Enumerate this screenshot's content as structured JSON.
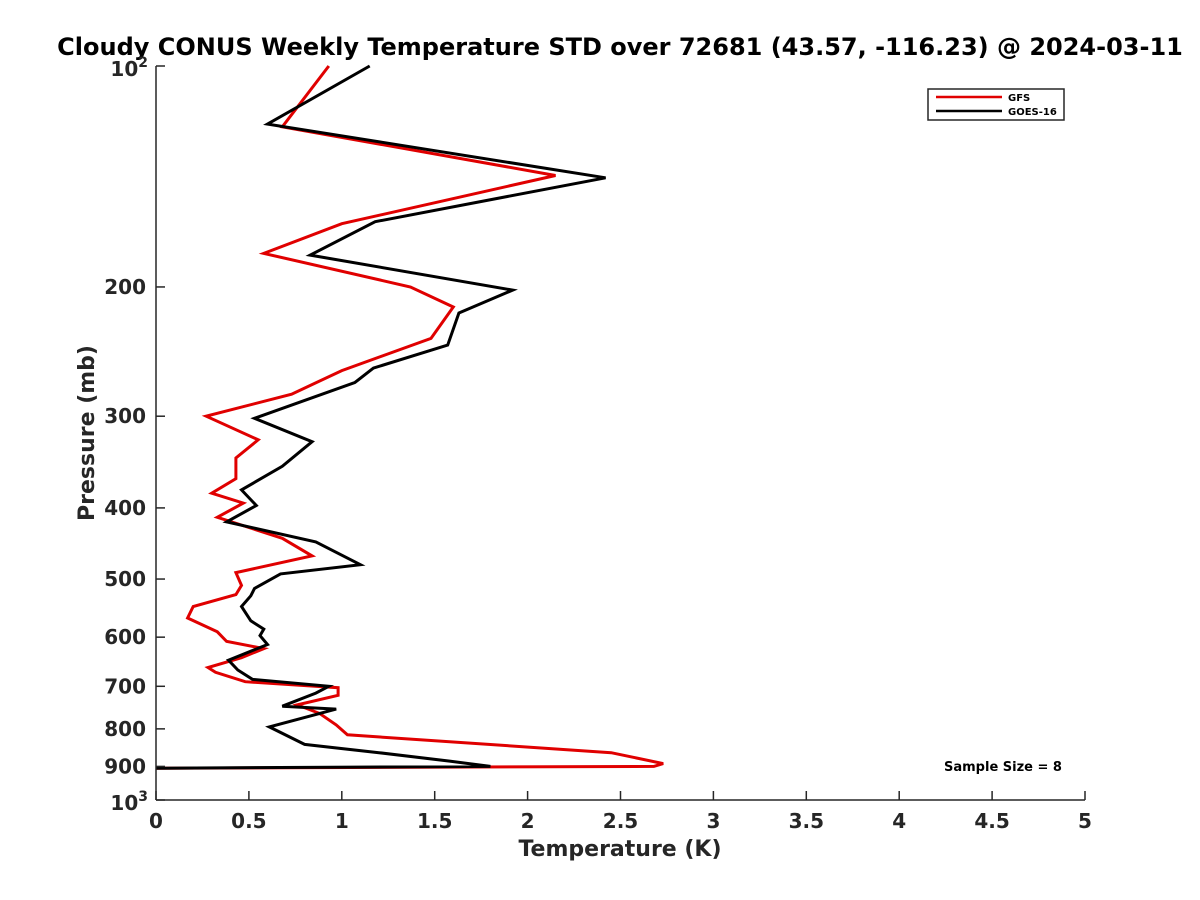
{
  "chart_data": {
    "type": "line",
    "title": "Cloudy CONUS Weekly Temperature STD over 72681 (43.57, -116.23) @ 2024-03-11",
    "xlabel": "Temperature (K)",
    "ylabel": "Pressure (mb)",
    "xlim": [
      0,
      5
    ],
    "ylim": [
      100,
      1000
    ],
    "y_scale": "log",
    "y_reversed": true,
    "grid": false,
    "legend_position": "top-right",
    "x_ticks": [
      "0",
      "0.5",
      "1",
      "1.5",
      "2",
      "2.5",
      "3",
      "3.5",
      "4",
      "4.5",
      "5"
    ],
    "y_ticks": [
      {
        "value": 200,
        "label": "200"
      },
      {
        "value": 300,
        "label": "300"
      },
      {
        "value": 400,
        "label": "400"
      },
      {
        "value": 500,
        "label": "500"
      },
      {
        "value": 600,
        "label": "600"
      },
      {
        "value": 700,
        "label": "700"
      },
      {
        "value": 800,
        "label": "800"
      },
      {
        "value": 900,
        "label": "900"
      }
    ],
    "y_edge_labels": {
      "top": {
        "base": "10",
        "exp": "2"
      },
      "bottom": {
        "base": "10",
        "exp": "3"
      }
    },
    "annotation": "Sample Size = 8",
    "series": [
      {
        "name": "GFS",
        "color": "#e00000",
        "points": [
          [
            0.93,
            100
          ],
          [
            0.68,
            121
          ],
          [
            2.15,
            141
          ],
          [
            1.0,
            164
          ],
          [
            0.58,
            180
          ],
          [
            1.37,
            200
          ],
          [
            1.6,
            213
          ],
          [
            1.48,
            235
          ],
          [
            1.0,
            260
          ],
          [
            0.73,
            280
          ],
          [
            0.27,
            300
          ],
          [
            0.55,
            323
          ],
          [
            0.43,
            342
          ],
          [
            0.43,
            365
          ],
          [
            0.3,
            382
          ],
          [
            0.47,
            394
          ],
          [
            0.33,
            412
          ],
          [
            0.68,
            440
          ],
          [
            0.84,
            465
          ],
          [
            0.43,
            490
          ],
          [
            0.46,
            510
          ],
          [
            0.43,
            525
          ],
          [
            0.2,
            545
          ],
          [
            0.17,
            565
          ],
          [
            0.33,
            590
          ],
          [
            0.38,
            608
          ],
          [
            0.58,
            622
          ],
          [
            0.46,
            640
          ],
          [
            0.28,
            660
          ],
          [
            0.32,
            670
          ],
          [
            0.48,
            690
          ],
          [
            0.98,
            703
          ],
          [
            0.98,
            720
          ],
          [
            0.76,
            742
          ],
          [
            0.88,
            762
          ],
          [
            0.97,
            790
          ],
          [
            1.03,
            815
          ],
          [
            2.45,
            862
          ],
          [
            2.73,
            892
          ],
          [
            2.68,
            900
          ],
          [
            0.0,
            905
          ]
        ]
      },
      {
        "name": "GOES-16",
        "color": "#000000",
        "points": [
          [
            1.15,
            100
          ],
          [
            0.6,
            120
          ],
          [
            2.42,
            142
          ],
          [
            1.18,
            163
          ],
          [
            0.83,
            181
          ],
          [
            1.92,
            202
          ],
          [
            1.63,
            217
          ],
          [
            1.57,
            240
          ],
          [
            1.17,
            258
          ],
          [
            1.07,
            270
          ],
          [
            0.53,
            302
          ],
          [
            0.84,
            325
          ],
          [
            0.68,
            351
          ],
          [
            0.46,
            378
          ],
          [
            0.54,
            397
          ],
          [
            0.38,
            418
          ],
          [
            0.86,
            445
          ],
          [
            1.1,
            478
          ],
          [
            0.67,
            492
          ],
          [
            0.53,
            515
          ],
          [
            0.51,
            527
          ],
          [
            0.46,
            545
          ],
          [
            0.51,
            570
          ],
          [
            0.58,
            585
          ],
          [
            0.56,
            597
          ],
          [
            0.6,
            614
          ],
          [
            0.39,
            645
          ],
          [
            0.44,
            665
          ],
          [
            0.52,
            685
          ],
          [
            0.93,
            700
          ],
          [
            0.86,
            715
          ],
          [
            0.68,
            745
          ],
          [
            0.97,
            752
          ],
          [
            0.61,
            795
          ],
          [
            0.8,
            840
          ],
          [
            1.2,
            862
          ],
          [
            1.58,
            885
          ],
          [
            1.8,
            900
          ],
          [
            0.0,
            905
          ]
        ]
      }
    ]
  }
}
